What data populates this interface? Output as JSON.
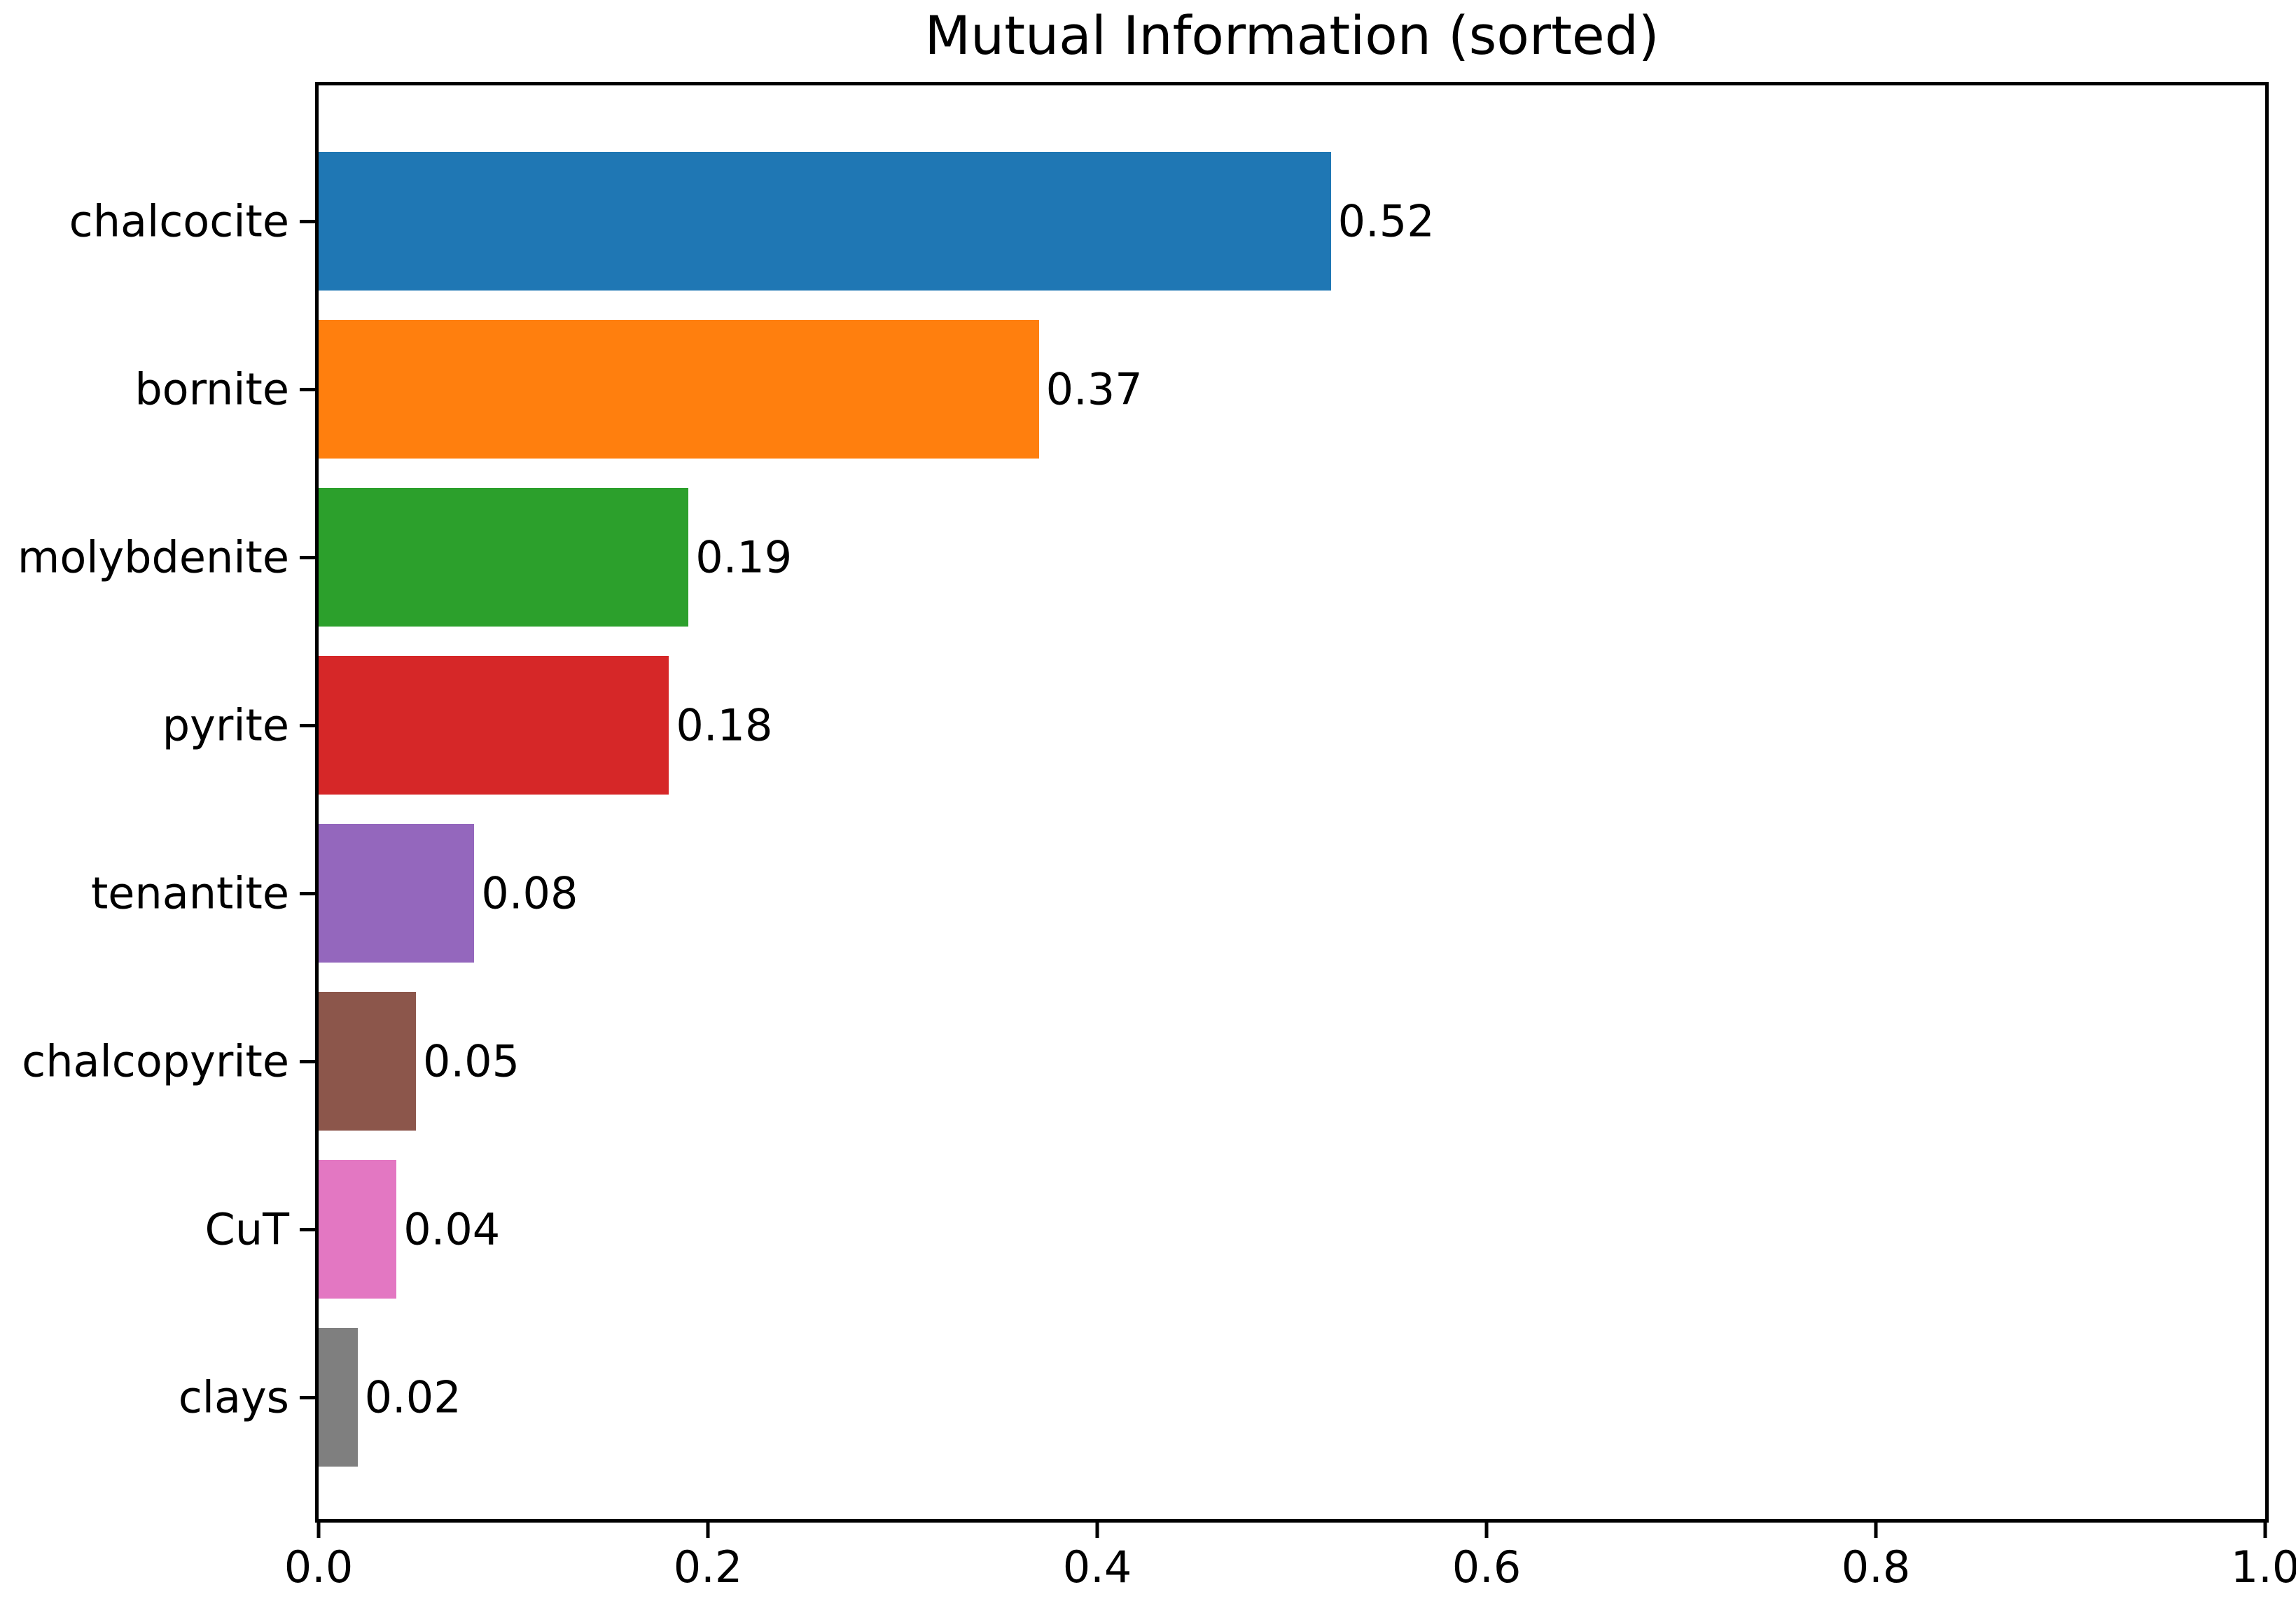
{
  "chart_data": {
    "type": "bar",
    "orientation": "horizontal",
    "title": "Mutual Information (sorted)",
    "categories": [
      "chalcocite",
      "bornite",
      "molybdenite",
      "pyrite",
      "tenantite",
      "chalcopyrite",
      "CuT",
      "clays"
    ],
    "values": [
      0.52,
      0.37,
      0.19,
      0.18,
      0.08,
      0.05,
      0.04,
      0.02
    ],
    "value_labels": [
      "0.52",
      "0.37",
      "0.19",
      "0.18",
      "0.08",
      "0.05",
      "0.04",
      "0.02"
    ],
    "bar_colors": [
      "#1f77b4",
      "#ff7f0e",
      "#2ca02c",
      "#d62728",
      "#9467bd",
      "#8c564b",
      "#e377c2",
      "#7f7f7f"
    ],
    "xlabel": "",
    "ylabel": "",
    "xlim": [
      0.0,
      1.0
    ],
    "xticks": [
      0.0,
      0.2,
      0.4,
      0.6,
      0.8,
      1.0
    ],
    "xtick_labels": [
      "0.0",
      "0.2",
      "0.4",
      "0.6",
      "0.8",
      "1.0"
    ],
    "grid": false,
    "legend": false,
    "text_color": "#000000",
    "spine_color": "#000000",
    "background_color": "#ffffff"
  }
}
